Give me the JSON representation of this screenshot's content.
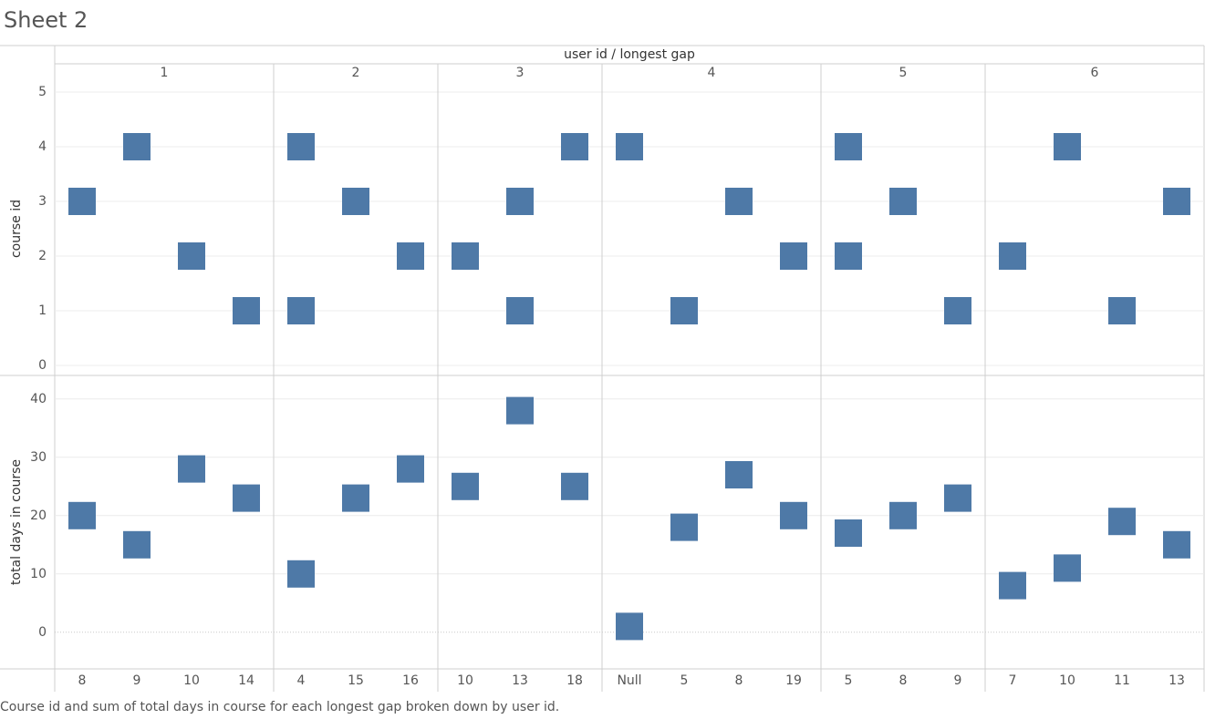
{
  "sheet": {
    "title": "Sheet 2",
    "caption": "Course id and sum of total days in course for each longest gap broken down by user id."
  },
  "colors": {
    "mark": "#4e79a7",
    "grid": "#ececec",
    "divider": "#cfcfcf",
    "text": "#555555"
  },
  "chart_data": {
    "type": "scatter",
    "mark_shape": "square",
    "column_header": "user id  /  longest gap",
    "grid": true,
    "groups": [
      {
        "user_id": "1",
        "gaps": [
          "8",
          "9",
          "10",
          "14"
        ]
      },
      {
        "user_id": "2",
        "gaps": [
          "4",
          "15",
          "16"
        ]
      },
      {
        "user_id": "3",
        "gaps": [
          "10",
          "13",
          "18"
        ]
      },
      {
        "user_id": "4",
        "gaps": [
          "Null",
          "5",
          "8",
          "19"
        ]
      },
      {
        "user_id": "5",
        "gaps": [
          "5",
          "8",
          "9"
        ]
      },
      {
        "user_id": "6",
        "gaps": [
          "7",
          "10",
          "11",
          "13"
        ]
      }
    ],
    "panes": [
      {
        "ylabel": "course id",
        "ylim": [
          0,
          5
        ],
        "yticks": [
          0,
          1,
          2,
          3,
          4,
          5
        ],
        "values": [
          [
            3
          ],
          [
            4
          ],
          [
            2
          ],
          [
            1
          ],
          [
            4,
            1
          ],
          [
            3
          ],
          [
            2
          ],
          [
            2
          ],
          [
            3,
            1
          ],
          [
            4
          ],
          [
            4
          ],
          [
            1
          ],
          [
            3
          ],
          [
            2
          ],
          [
            4,
            2
          ],
          [
            3
          ],
          [
            1
          ],
          [
            2
          ],
          [
            4
          ],
          [
            1
          ],
          [
            3
          ]
        ]
      },
      {
        "ylabel": "total days in course",
        "ylim": [
          -3,
          42
        ],
        "yticks": [
          0,
          10,
          20,
          30,
          40
        ],
        "zero_line": true,
        "values": [
          [
            20
          ],
          [
            15
          ],
          [
            28
          ],
          [
            23
          ],
          [
            10
          ],
          [
            23
          ],
          [
            28
          ],
          [
            25
          ],
          [
            38
          ],
          [
            25
          ],
          [
            1
          ],
          [
            18
          ],
          [
            27
          ],
          [
            20
          ],
          [
            17
          ],
          [
            20
          ],
          [
            23
          ],
          [
            8
          ],
          [
            11
          ],
          [
            19
          ],
          [
            15
          ]
        ]
      }
    ]
  }
}
